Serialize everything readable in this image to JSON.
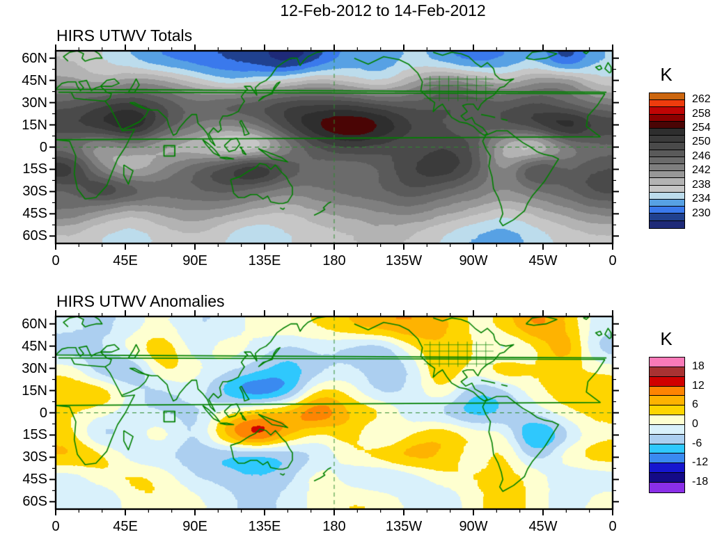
{
  "page_title": "12-Feb-2012 to 14-Feb-2012",
  "axes": {
    "y_tick_labels": [
      "60N",
      "45N",
      "30N",
      "15N",
      "0",
      "15S",
      "30S",
      "45S",
      "60S"
    ],
    "x_tick_labels": [
      "0",
      "45E",
      "90E",
      "135E",
      "180",
      "135W",
      "90W",
      "45W",
      "0"
    ]
  },
  "maps": {
    "totals": {
      "title": "HIRS UTWV Totals",
      "colorbar": {
        "unit": "K",
        "tick_labels": [
          "262",
          "258",
          "254",
          "250",
          "246",
          "242",
          "238",
          "234",
          "230"
        ],
        "colors_top_to_bottom": [
          "#cc660f",
          "#ee3c0d",
          "#c00505",
          "#8b0000",
          "#4a0505",
          "#2e2e2e",
          "#3b3b3b",
          "#4a4a4a",
          "#5a5a5a",
          "#6b6b6b",
          "#7f7f7f",
          "#979797",
          "#b3b3b3",
          "#c6c6c6",
          "#bcdcec",
          "#57a1e4",
          "#3a79ec",
          "#20418f",
          "#1e2a78"
        ]
      }
    },
    "anomalies": {
      "title": "HIRS UTWV Anomalies",
      "colorbar": {
        "unit": "K",
        "tick_labels": [
          "18",
          "12",
          "6",
          "0",
          "-6",
          "-12",
          "-18"
        ],
        "colors_top_to_bottom": [
          "#f97ab8",
          "#a83232",
          "#d00000",
          "#fe8402",
          "#feb301",
          "#fed500",
          "#feffd0",
          "#d9f1fb",
          "#accff0",
          "#2fc8fd",
          "#3a8af0",
          "#1616cf",
          "#140a87",
          "#8a2fe8"
        ]
      }
    }
  },
  "chart_data": [
    {
      "type": "heatmap",
      "title": "HIRS UTWV Totals",
      "units": "K",
      "projection": "lat-lon, 0E to 360E left-to-right, 65N top to 65S bottom",
      "lon_deg_east": [
        10,
        30,
        50,
        70,
        90,
        110,
        130,
        150,
        170,
        190,
        210,
        230,
        250,
        270,
        290,
        310,
        330,
        350
      ],
      "lat_deg": [
        60,
        45,
        30,
        15,
        0,
        -15,
        -30,
        -45,
        -60
      ],
      "levels": [
        230,
        232,
        234,
        236,
        238,
        240,
        242,
        244,
        246,
        248,
        250,
        252,
        254,
        256,
        258,
        260,
        262
      ],
      "palette_low_to_high": [
        "#1e2a78",
        "#20418f",
        "#3a79ec",
        "#57a1e4",
        "#bcdcec",
        "#c6c6c6",
        "#b3b3b3",
        "#979797",
        "#7f7f7f",
        "#6b6b6b",
        "#5a5a5a",
        "#4a4a4a",
        "#3b3b3b",
        "#2e2e2e",
        "#4a0505",
        "#8b0000",
        "#c00505",
        "#ee3c0d",
        "#cc660f"
      ],
      "value_range": [
        226,
        266
      ],
      "values": [
        [
          240,
          238,
          236,
          234,
          233,
          232,
          231,
          229,
          232,
          235,
          234,
          237,
          235,
          233,
          234,
          236,
          231,
          236
        ],
        [
          243,
          241,
          244,
          243,
          240,
          237,
          238,
          240,
          242,
          240,
          238,
          242,
          246,
          244,
          241,
          244,
          245,
          239
        ],
        [
          249,
          252,
          253,
          250,
          247,
          249,
          250,
          252,
          252,
          252,
          250,
          249,
          250,
          250,
          249,
          251,
          248,
          246
        ],
        [
          252,
          254,
          257,
          250,
          246,
          244,
          246,
          252,
          257,
          259,
          257,
          252,
          250,
          248,
          250,
          252,
          257,
          252
        ],
        [
          246,
          242,
          244,
          241,
          240,
          236,
          237,
          244,
          250,
          252,
          251,
          250,
          252,
          250,
          240,
          237,
          244,
          247
        ],
        [
          254,
          244,
          240,
          244,
          248,
          252,
          256,
          250,
          247,
          246,
          248,
          252,
          254,
          250,
          243,
          252,
          248,
          250
        ],
        [
          248,
          253,
          250,
          247,
          248,
          249,
          247,
          245,
          246,
          247,
          248,
          250,
          248,
          246,
          244,
          246,
          248,
          251
        ],
        [
          246,
          243,
          241,
          243,
          244,
          243,
          241,
          240,
          242,
          243,
          244,
          245,
          243,
          241,
          239,
          241,
          243,
          245
        ],
        [
          240,
          238,
          237,
          239,
          240,
          238,
          236,
          238,
          239,
          240,
          241,
          240,
          238,
          236,
          235,
          237,
          239,
          240
        ]
      ],
      "annotations": {
        "region_box_lon": [
          70,
          77
        ],
        "region_box_lat": [
          -6,
          1
        ],
        "dashed_lines": [
          "equator",
          "180 meridian"
        ]
      }
    },
    {
      "type": "heatmap",
      "title": "HIRS UTWV Anomalies",
      "units": "K",
      "projection": "lat-lon, 0E to 360E left-to-right, 65N top to 65S bottom",
      "lon_deg_east": [
        10,
        30,
        50,
        70,
        90,
        110,
        130,
        150,
        170,
        190,
        210,
        230,
        250,
        270,
        290,
        310,
        330,
        350
      ],
      "lat_deg": [
        60,
        45,
        30,
        15,
        0,
        -15,
        -30,
        -45,
        -60
      ],
      "levels": [
        -18,
        -15,
        -12,
        -9,
        -6,
        -3,
        0,
        3,
        6,
        9,
        12,
        15,
        18
      ],
      "palette_low_to_high": [
        "#8a2fe8",
        "#140a87",
        "#1616cf",
        "#3a8af0",
        "#2fc8fd",
        "#accff0",
        "#d9f1fb",
        "#feffd0",
        "#fed500",
        "#feb301",
        "#fe8402",
        "#d00000",
        "#a83232",
        "#f97ab8"
      ],
      "value_range": [
        -22,
        22
      ],
      "values": [
        [
          -2,
          -4,
          -1,
          1,
          -3,
          -2,
          1,
          2,
          3,
          6,
          8,
          9,
          7,
          2,
          4,
          10,
          6,
          -2
        ],
        [
          -5,
          -3,
          2,
          6,
          -2,
          2,
          -1,
          -4,
          -2,
          -4,
          -6,
          2,
          6,
          3,
          -2,
          2,
          9,
          -4
        ],
        [
          2,
          -6,
          -7,
          4,
          1,
          -2,
          -5,
          -8,
          -4,
          -2,
          -5,
          -3,
          7,
          1,
          6,
          3,
          4,
          2
        ],
        [
          5,
          6,
          -2,
          -4,
          -1,
          -8,
          -13,
          -9,
          4,
          2,
          -4,
          -2,
          3,
          -6,
          -4,
          2,
          5,
          6
        ],
        [
          3,
          1,
          -2,
          -3,
          -4,
          2,
          6,
          8,
          13,
          6,
          4,
          -2,
          -4,
          -8,
          -6,
          -2,
          2,
          4
        ],
        [
          4,
          -5,
          -1,
          2,
          -4,
          8,
          16,
          7,
          2,
          5,
          -2,
          3,
          6,
          2,
          1,
          -12,
          -4,
          2
        ],
        [
          7,
          4,
          -2,
          -3,
          -5,
          -7,
          -8,
          -6,
          -3,
          2,
          5,
          8,
          6,
          1,
          4,
          -5,
          2,
          5
        ],
        [
          -2,
          2,
          4,
          2,
          -3,
          -4,
          -6,
          -4,
          2,
          -2,
          -4,
          -2,
          2,
          3,
          4,
          2,
          -3,
          -2
        ],
        [
          -1,
          -3,
          2,
          3,
          1,
          -2,
          -4,
          -2,
          1,
          3,
          2,
          -1,
          -3,
          2,
          4,
          2,
          -2,
          1
        ]
      ],
      "annotations": {
        "region_box_lon": [
          70,
          77
        ],
        "region_box_lat": [
          -6,
          1
        ],
        "dashed_lines": [
          "equator",
          "180 meridian"
        ]
      }
    }
  ]
}
